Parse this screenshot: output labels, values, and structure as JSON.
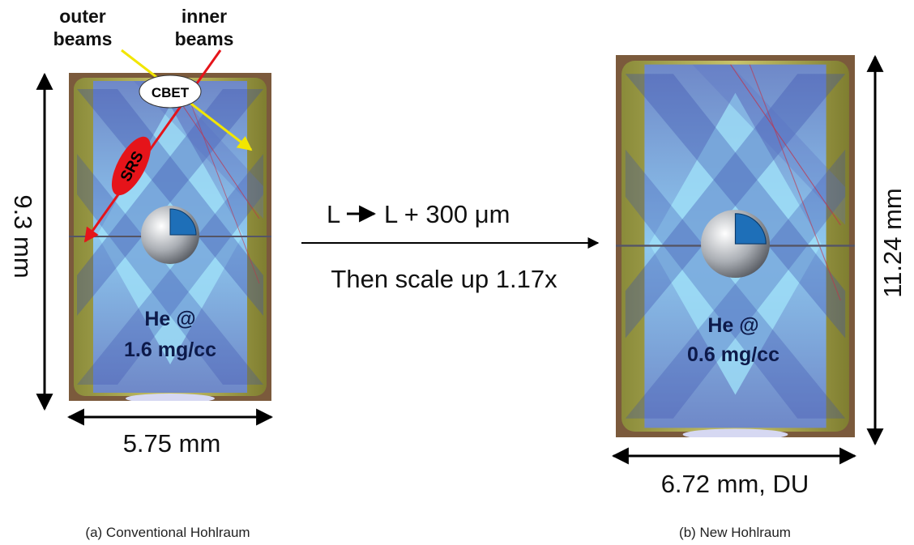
{
  "left": {
    "outer_label": [
      "outer",
      "beams"
    ],
    "inner_label": [
      "inner",
      "beams"
    ],
    "cbet": "CBET",
    "srs": "SRS",
    "height": "9.3 mm",
    "width": "5.75 mm",
    "gas": [
      "He @",
      "1.6 mg/cc"
    ],
    "caption": "(a) Conventional Hohlraum"
  },
  "transform": {
    "from": "L",
    "to": "L + 300 μm",
    "scale": "Then scale up 1.17x"
  },
  "right": {
    "height": "11.24 mm",
    "width": "6.72 mm, DU",
    "gas": [
      "He @",
      "0.6 mg/cc"
    ],
    "caption": "(b) New Hohlraum"
  }
}
